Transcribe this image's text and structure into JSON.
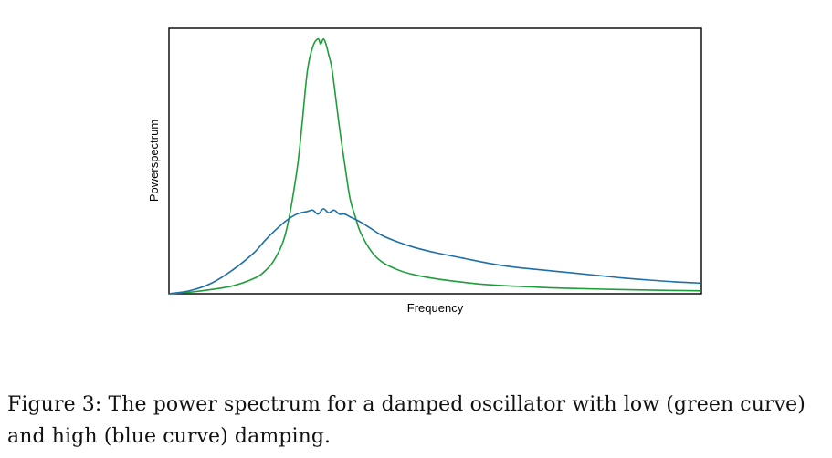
{
  "chart_data": {
    "type": "line",
    "title": "",
    "xlabel": "Frequency",
    "ylabel": "Powerspectrum",
    "xlim": [
      0,
      1
    ],
    "ylim": [
      0,
      1
    ],
    "grid": false,
    "legend": "none",
    "ticks": "none",
    "colors": {
      "green": "#1e9e3a",
      "blue": "#1f6fa8"
    },
    "series": [
      {
        "color": "#1e9e3a",
        "x": [
          0,
          0.04,
          0.08,
          0.12,
          0.16,
          0.18,
          0.2,
          0.22,
          0.24,
          0.25,
          0.26,
          0.27,
          0.28,
          0.285,
          0.29,
          0.295,
          0.3,
          0.305,
          0.31,
          0.32,
          0.33,
          0.34,
          0.35,
          0.36,
          0.38,
          0.4,
          0.43,
          0.46,
          0.5,
          0.55,
          0.6,
          0.7,
          0.8,
          0.9,
          1
        ],
        "y": [
          0,
          0.006,
          0.016,
          0.03,
          0.058,
          0.085,
          0.135,
          0.235,
          0.46,
          0.64,
          0.84,
          0.93,
          0.96,
          0.94,
          0.96,
          0.94,
          0.9,
          0.86,
          0.79,
          0.63,
          0.49,
          0.36,
          0.29,
          0.23,
          0.16,
          0.12,
          0.09,
          0.072,
          0.057,
          0.044,
          0.034,
          0.024,
          0.018,
          0.014,
          0.011
        ]
      },
      {
        "color": "#1f6fa8",
        "x": [
          0,
          0.04,
          0.08,
          0.12,
          0.16,
          0.18,
          0.2,
          0.22,
          0.24,
          0.26,
          0.27,
          0.28,
          0.29,
          0.3,
          0.31,
          0.32,
          0.33,
          0.34,
          0.36,
          0.38,
          0.4,
          0.43,
          0.46,
          0.5,
          0.55,
          0.6,
          0.65,
          0.7,
          0.75,
          0.8,
          0.85,
          0.9,
          0.95,
          1
        ],
        "y": [
          0,
          0.012,
          0.04,
          0.09,
          0.155,
          0.2,
          0.24,
          0.275,
          0.3,
          0.31,
          0.315,
          0.3,
          0.32,
          0.305,
          0.315,
          0.3,
          0.3,
          0.29,
          0.27,
          0.245,
          0.22,
          0.195,
          0.175,
          0.155,
          0.135,
          0.115,
          0.1,
          0.09,
          0.08,
          0.07,
          0.06,
          0.052,
          0.045,
          0.04
        ]
      }
    ]
  },
  "caption": {
    "line1": "Figure 3:  The power spectrum for a damped oscillator with low (green curve)",
    "line2": "and high (blue curve) damping."
  }
}
